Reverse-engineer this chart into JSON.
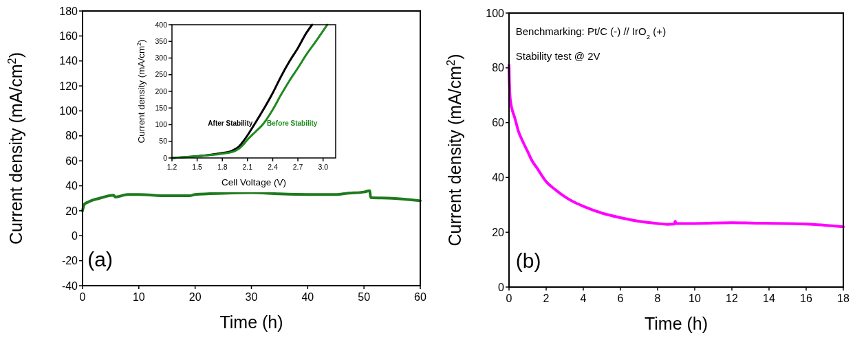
{
  "chart_data": [
    {
      "type": "line",
      "xlabel": "Time (h)",
      "ylabel": "Current density (mA/cm$^{2}$)",
      "xlim": [
        0,
        60
      ],
      "ylim": [
        -40,
        180
      ],
      "xticks": [
        0,
        10,
        20,
        30,
        40,
        50,
        60
      ],
      "yticks": [
        -40,
        -20,
        0,
        20,
        40,
        60,
        80,
        100,
        120,
        140,
        160,
        180
      ],
      "annotations": [
        "(a)"
      ],
      "series": [
        {
          "color": "#1e7a1e",
          "x": [
            0,
            0.3,
            1,
            3,
            5.5,
            5.8,
            8,
            10,
            15,
            19,
            20,
            25,
            30,
            35,
            40,
            45,
            47,
            50,
            51,
            51.2,
            55,
            60
          ],
          "values": [
            20,
            25,
            27,
            30,
            32.5,
            31,
            33,
            33,
            32,
            32,
            33,
            34,
            34.5,
            33.5,
            33,
            33,
            34,
            35,
            36,
            30.5,
            30,
            28
          ]
        }
      ]
    },
    {
      "type": "line",
      "xlabel": "Cell Voltage (V)",
      "ylabel": "Current density (mA/cm$^{2}$)",
      "xlim": [
        1.2,
        3.15
      ],
      "ylim": [
        0,
        400
      ],
      "xticks": [
        {
          "value": 1.2,
          "label": "1.2"
        },
        {
          "value": 1.5,
          "label": "1.5"
        },
        {
          "value": 1.8,
          "label": "1.8"
        },
        {
          "value": 2.1,
          "label": "2.1"
        },
        {
          "value": 2.4,
          "label": "2.4"
        },
        {
          "value": 2.7,
          "label": "2.7"
        },
        {
          "value": 3,
          "label": "3.0"
        }
      ],
      "yticks": [
        0,
        50,
        100,
        150,
        200,
        250,
        300,
        350,
        400
      ],
      "series": [
        {
          "name": "After Stability",
          "color": "#000000",
          "x": [
            1.2,
            1.5,
            1.8,
            1.9,
            1.95,
            2.0,
            2.05,
            2.1,
            2.18,
            2.3,
            2.4,
            2.5,
            2.6,
            2.7,
            2.8,
            2.87
          ],
          "values": [
            0,
            5,
            15,
            20,
            26,
            35,
            50,
            68,
            100,
            150,
            195,
            245,
            290,
            330,
            375,
            400
          ]
        },
        {
          "name": "Before Stability",
          "color": "#1e8a1e",
          "x": [
            1.2,
            1.5,
            1.8,
            1.9,
            1.95,
            2.0,
            2.05,
            2.1,
            2.2,
            2.28,
            2.4,
            2.5,
            2.6,
            2.7,
            2.8,
            2.9,
            3.05
          ],
          "values": [
            0,
            5,
            13,
            17,
            21,
            28,
            40,
            55,
            80,
            100,
            145,
            190,
            232,
            270,
            310,
            345,
            400
          ]
        }
      ]
    },
    {
      "type": "line",
      "xlabel": "Time (h)",
      "ylabel": "Current density (mA/cm$^{2}$)",
      "xlim": [
        0,
        18
      ],
      "ylim": [
        0,
        100
      ],
      "xticks": [
        0,
        2,
        4,
        6,
        8,
        10,
        12,
        14,
        16,
        18
      ],
      "yticks": [
        0,
        20,
        40,
        60,
        80,
        100
      ],
      "annotations": [
        "Benchmarking: Pt/C (-) // IrO$_{2}$ (+)",
        "Stability test @ 2V",
        "(b)"
      ],
      "series": [
        {
          "color": "#ff00ff",
          "x": [
            0,
            0.02,
            0.05,
            0.1,
            0.2,
            0.3,
            0.5,
            0.75,
            1,
            1.25,
            1.5,
            2,
            2.5,
            3,
            3.5,
            4,
            5,
            6,
            7,
            8,
            8.5,
            8.9,
            8.95,
            9,
            10,
            12,
            13,
            16,
            18
          ],
          "values": [
            81,
            75,
            70,
            67,
            64,
            62,
            57,
            53,
            49.5,
            46,
            43.5,
            38.5,
            35.5,
            33,
            31,
            29.5,
            27,
            25.3,
            24,
            23.2,
            22.9,
            23,
            24,
            23.2,
            23.2,
            23.5,
            23.4,
            23,
            22
          ]
        }
      ]
    }
  ]
}
